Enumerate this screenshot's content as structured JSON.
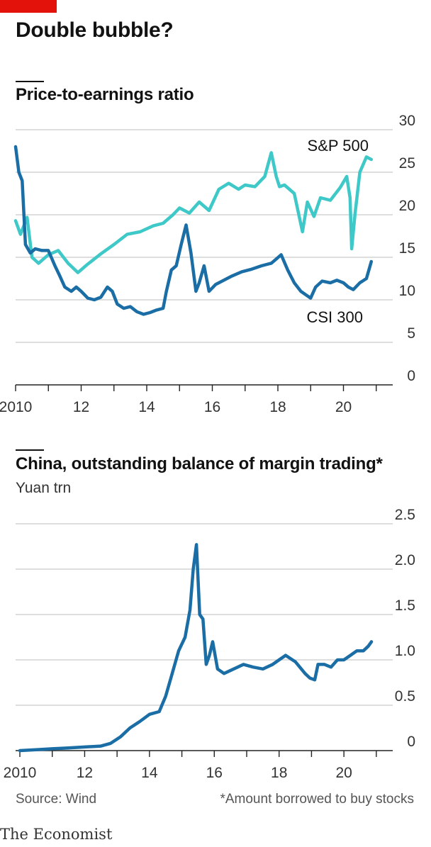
{
  "header": {
    "title": "Double bubble?",
    "accent_color": "#e3120b"
  },
  "chart_data": [
    {
      "type": "line",
      "title": "Price-to-earnings ratio",
      "x_ticks": [
        "2010",
        "12",
        "14",
        "16",
        "18",
        "20"
      ],
      "y_ticks": [
        "0",
        "5",
        "10",
        "15",
        "20",
        "25",
        "30"
      ],
      "xlim": [
        2010,
        2021.2
      ],
      "ylim": [
        0,
        30
      ],
      "grid": true,
      "series": [
        {
          "name": "S&P 500",
          "color": "#3ec8c8",
          "x": [
            2010.0,
            2010.15,
            2010.35,
            2010.5,
            2010.7,
            2011.0,
            2011.3,
            2011.6,
            2011.9,
            2012.2,
            2012.6,
            2013.0,
            2013.4,
            2013.8,
            2014.2,
            2014.5,
            2014.8,
            2015.0,
            2015.3,
            2015.6,
            2015.9,
            2016.2,
            2016.5,
            2016.8,
            2017.0,
            2017.3,
            2017.6,
            2017.8,
            2017.95,
            2018.05,
            2018.2,
            2018.5,
            2018.75,
            2018.9,
            2019.1,
            2019.3,
            2019.6,
            2019.9,
            2020.1,
            2020.2,
            2020.25,
            2020.35,
            2020.5,
            2020.7,
            2020.85
          ],
          "values": [
            19.3,
            17.7,
            19.7,
            15.0,
            14.3,
            15.3,
            15.8,
            14.3,
            13.2,
            14.2,
            15.4,
            16.5,
            17.7,
            18.0,
            18.7,
            19.0,
            20.0,
            20.8,
            20.2,
            21.5,
            20.5,
            23.0,
            23.7,
            23.0,
            23.5,
            23.3,
            24.5,
            27.3,
            24.5,
            23.3,
            23.5,
            22.5,
            18.0,
            21.5,
            19.8,
            22.0,
            21.7,
            23.2,
            24.5,
            22.0,
            16.0,
            20.0,
            25.0,
            26.8,
            26.5
          ]
        },
        {
          "name": "CSI 300",
          "color": "#1a6ea5",
          "x": [
            2010.0,
            2010.1,
            2010.2,
            2010.3,
            2010.45,
            2010.6,
            2010.8,
            2011.0,
            2011.2,
            2011.35,
            2011.5,
            2011.7,
            2011.85,
            2012.0,
            2012.2,
            2012.4,
            2012.6,
            2012.8,
            2012.95,
            2013.1,
            2013.3,
            2013.5,
            2013.7,
            2013.9,
            2014.1,
            2014.3,
            2014.5,
            2014.6,
            2014.75,
            2014.9,
            2015.05,
            2015.2,
            2015.35,
            2015.5,
            2015.6,
            2015.75,
            2015.9,
            2016.1,
            2016.35,
            2016.6,
            2016.9,
            2017.2,
            2017.5,
            2017.8,
            2017.95,
            2018.1,
            2018.3,
            2018.5,
            2018.7,
            2018.85,
            2019.0,
            2019.15,
            2019.35,
            2019.6,
            2019.8,
            2020.0,
            2020.15,
            2020.3,
            2020.5,
            2020.7,
            2020.85
          ],
          "values": [
            28.0,
            25.0,
            24.0,
            16.5,
            15.5,
            16.0,
            15.8,
            15.8,
            14.0,
            12.8,
            11.5,
            11.0,
            11.5,
            11.0,
            10.2,
            10.0,
            10.3,
            11.5,
            11.0,
            9.5,
            9.0,
            9.2,
            8.6,
            8.3,
            8.5,
            8.8,
            9.0,
            11.0,
            13.5,
            14.0,
            16.5,
            18.8,
            15.5,
            11.0,
            12.0,
            14.0,
            11.0,
            11.8,
            12.3,
            12.8,
            13.3,
            13.6,
            14.0,
            14.3,
            14.8,
            15.3,
            13.5,
            12.0,
            11.0,
            10.6,
            10.2,
            11.5,
            12.2,
            12.0,
            12.3,
            12.0,
            11.5,
            11.2,
            12.0,
            12.5,
            14.5
          ]
        }
      ]
    },
    {
      "type": "line",
      "title": "China, outstanding balance of margin trading*",
      "unit": "Yuan trn",
      "x_ticks": [
        "2010",
        "12",
        "14",
        "16",
        "18",
        "20"
      ],
      "y_ticks": [
        "0",
        "0.5",
        "1.0",
        "1.5",
        "2.0",
        "2.5"
      ],
      "xlim": [
        2010,
        2021.2
      ],
      "ylim": [
        0,
        2.5
      ],
      "grid": true,
      "series": [
        {
          "color": "#1a6ea5",
          "x": [
            2010.0,
            2010.5,
            2011.0,
            2011.5,
            2012.0,
            2012.5,
            2012.8,
            2013.1,
            2013.4,
            2013.7,
            2014.0,
            2014.3,
            2014.5,
            2014.7,
            2014.9,
            2015.1,
            2015.25,
            2015.35,
            2015.45,
            2015.55,
            2015.65,
            2015.75,
            2015.85,
            2015.95,
            2016.1,
            2016.3,
            2016.6,
            2016.9,
            2017.2,
            2017.5,
            2017.8,
            2018.0,
            2018.2,
            2018.5,
            2018.8,
            2018.95,
            2019.1,
            2019.2,
            2019.4,
            2019.6,
            2019.8,
            2020.0,
            2020.2,
            2020.4,
            2020.6,
            2020.75,
            2020.85
          ],
          "values": [
            0.0,
            0.01,
            0.02,
            0.03,
            0.04,
            0.05,
            0.08,
            0.15,
            0.25,
            0.32,
            0.4,
            0.43,
            0.6,
            0.85,
            1.1,
            1.25,
            1.55,
            2.0,
            2.27,
            1.5,
            1.45,
            0.95,
            1.05,
            1.2,
            0.9,
            0.85,
            0.9,
            0.95,
            0.92,
            0.9,
            0.95,
            1.0,
            1.05,
            0.98,
            0.85,
            0.8,
            0.78,
            0.95,
            0.95,
            0.92,
            1.0,
            1.0,
            1.05,
            1.1,
            1.1,
            1.15,
            1.2
          ]
        }
      ]
    }
  ],
  "footer": {
    "source": "Source: Wind",
    "footnote": "*Amount borrowed to buy stocks",
    "brand": "The Economist"
  }
}
